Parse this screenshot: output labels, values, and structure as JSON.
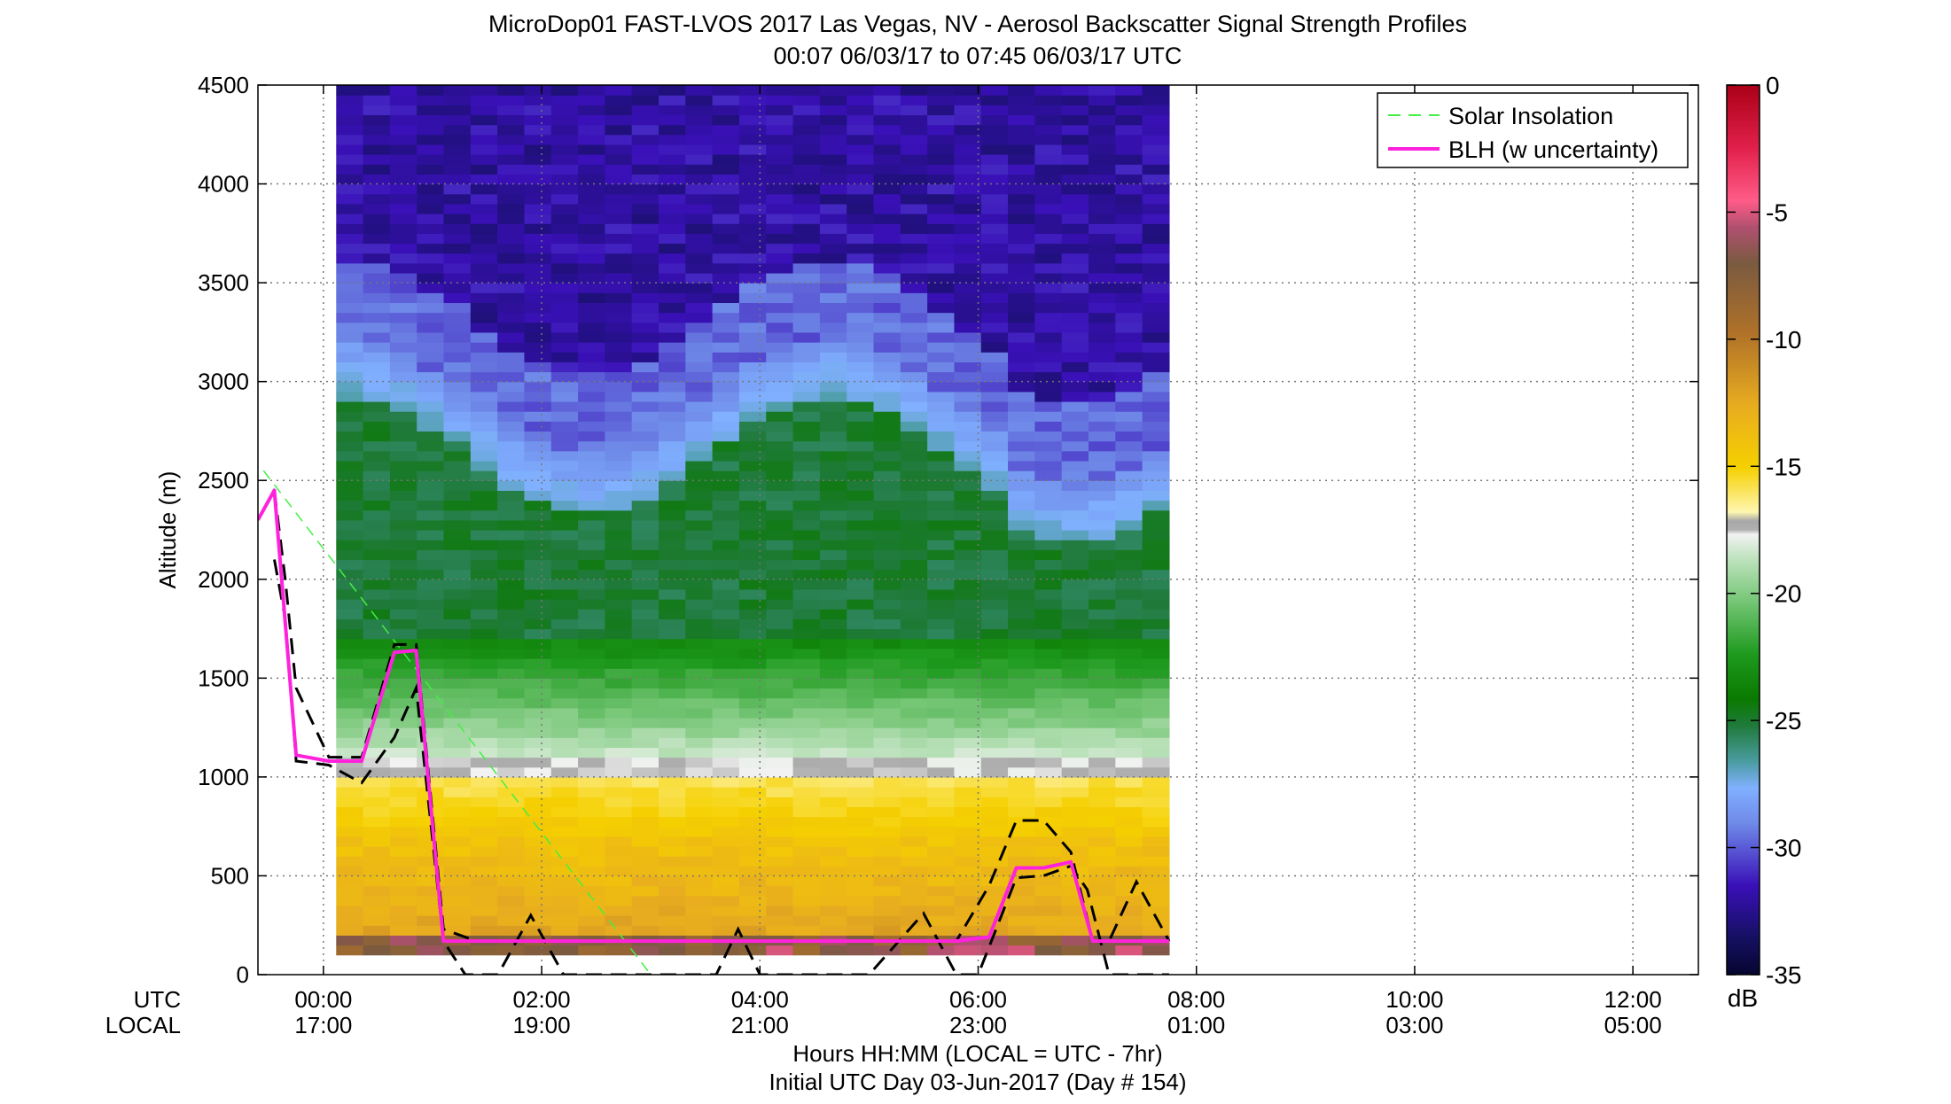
{
  "chart_data": {
    "type": "heatmap",
    "title": "MicroDop01 FAST-LVOS 2017 Las Vegas, NV - Aerosol Backscatter Signal Strength Profiles",
    "subtitle": "00:07 06/03/17 to 07:45 06/03/17  UTC",
    "ylabel": "Altitude (m)",
    "xlabel": "Hours HH:MM  (LOCAL = UTC - 7hr)",
    "xlabel2": "Initial UTC Day 03-Jun-2017 (Day # 154)",
    "x_row_labels": [
      "UTC",
      "LOCAL"
    ],
    "xlim_hours": [
      -0.6,
      12.6
    ],
    "ylim": [
      0,
      4500
    ],
    "y_ticks": [
      0,
      500,
      1000,
      1500,
      2000,
      2500,
      3000,
      3500,
      4000,
      4500
    ],
    "x_ticks": [
      {
        "hour": 0,
        "utc": "00:00",
        "local": "17:00"
      },
      {
        "hour": 2,
        "utc": "02:00",
        "local": "19:00"
      },
      {
        "hour": 4,
        "utc": "04:00",
        "local": "21:00"
      },
      {
        "hour": 6,
        "utc": "06:00",
        "local": "23:00"
      },
      {
        "hour": 8,
        "utc": "08:00",
        "local": "01:00"
      },
      {
        "hour": 10,
        "utc": "10:00",
        "local": "03:00"
      },
      {
        "hour": 12,
        "utc": "12:00",
        "local": "05:00"
      }
    ],
    "grid": true,
    "legend_position": "top-right",
    "legend": [
      "Solar Insolation",
      "BLH (w uncertainty)"
    ],
    "colorbar": {
      "label": "dB",
      "range": [
        -35,
        0
      ],
      "ticks": [
        0,
        -5,
        -10,
        -15,
        -20,
        -25,
        -30,
        -35
      ]
    },
    "heatmap": {
      "time_start_hour": 0.117,
      "time_end_hour": 7.75,
      "altitude_bottom": 100,
      "altitude_top": 4500,
      "n_columns": 31
    },
    "blh": {
      "hours": [
        -0.6,
        -0.45,
        -0.25,
        0.05,
        0.35,
        0.65,
        0.85,
        1.1,
        1.5,
        2.0,
        3.0,
        4.0,
        5.0,
        5.8,
        6.1,
        6.35,
        6.6,
        6.85,
        7.05,
        7.2,
        7.45,
        7.75
      ],
      "altitude": [
        2300,
        2450,
        1110,
        1080,
        1080,
        1630,
        1640,
        170,
        170,
        170,
        170,
        170,
        170,
        170,
        190,
        540,
        540,
        570,
        170,
        170,
        170,
        170
      ]
    },
    "blh_upper": {
      "hours": [
        -0.45,
        -0.35,
        -0.25,
        0.05,
        0.35,
        0.65,
        0.85,
        1.1,
        1.4,
        2.0,
        3.0,
        3.8,
        4.0,
        5.0,
        5.8,
        6.1,
        6.35,
        6.6,
        6.85,
        7.05,
        7.2,
        7.45,
        7.75
      ],
      "altitude": [
        2450,
        2000,
        1450,
        1100,
        1100,
        1670,
        1670,
        230,
        170,
        170,
        170,
        170,
        170,
        170,
        170,
        450,
        780,
        780,
        620,
        170,
        170,
        470,
        170
      ]
    },
    "blh_lower": {
      "hours": [
        -0.45,
        -0.35,
        -0.25,
        0.05,
        0.35,
        0.65,
        0.85,
        1.1,
        1.3,
        1.6,
        1.9,
        2.2,
        2.5,
        3.0,
        3.6,
        3.8,
        4.0,
        4.5,
        5.0,
        5.5,
        5.8,
        6.0,
        6.35,
        6.6,
        6.85,
        7.0,
        7.2,
        7.75
      ],
      "altitude": [
        2100,
        1800,
        1080,
        1060,
        970,
        1200,
        1450,
        170,
        0,
        0,
        300,
        0,
        0,
        0,
        0,
        230,
        0,
        0,
        0,
        310,
        0,
        0,
        490,
        500,
        550,
        430,
        0,
        0
      ]
    },
    "solar_insolation": {
      "hours": [
        -0.55,
        3.0
      ],
      "altitude": [
        2550,
        0
      ]
    }
  },
  "colors": {
    "blh": "#ff22dd",
    "uncertainty": "#000000",
    "solar": "#44ee44",
    "grid": "#777777"
  }
}
